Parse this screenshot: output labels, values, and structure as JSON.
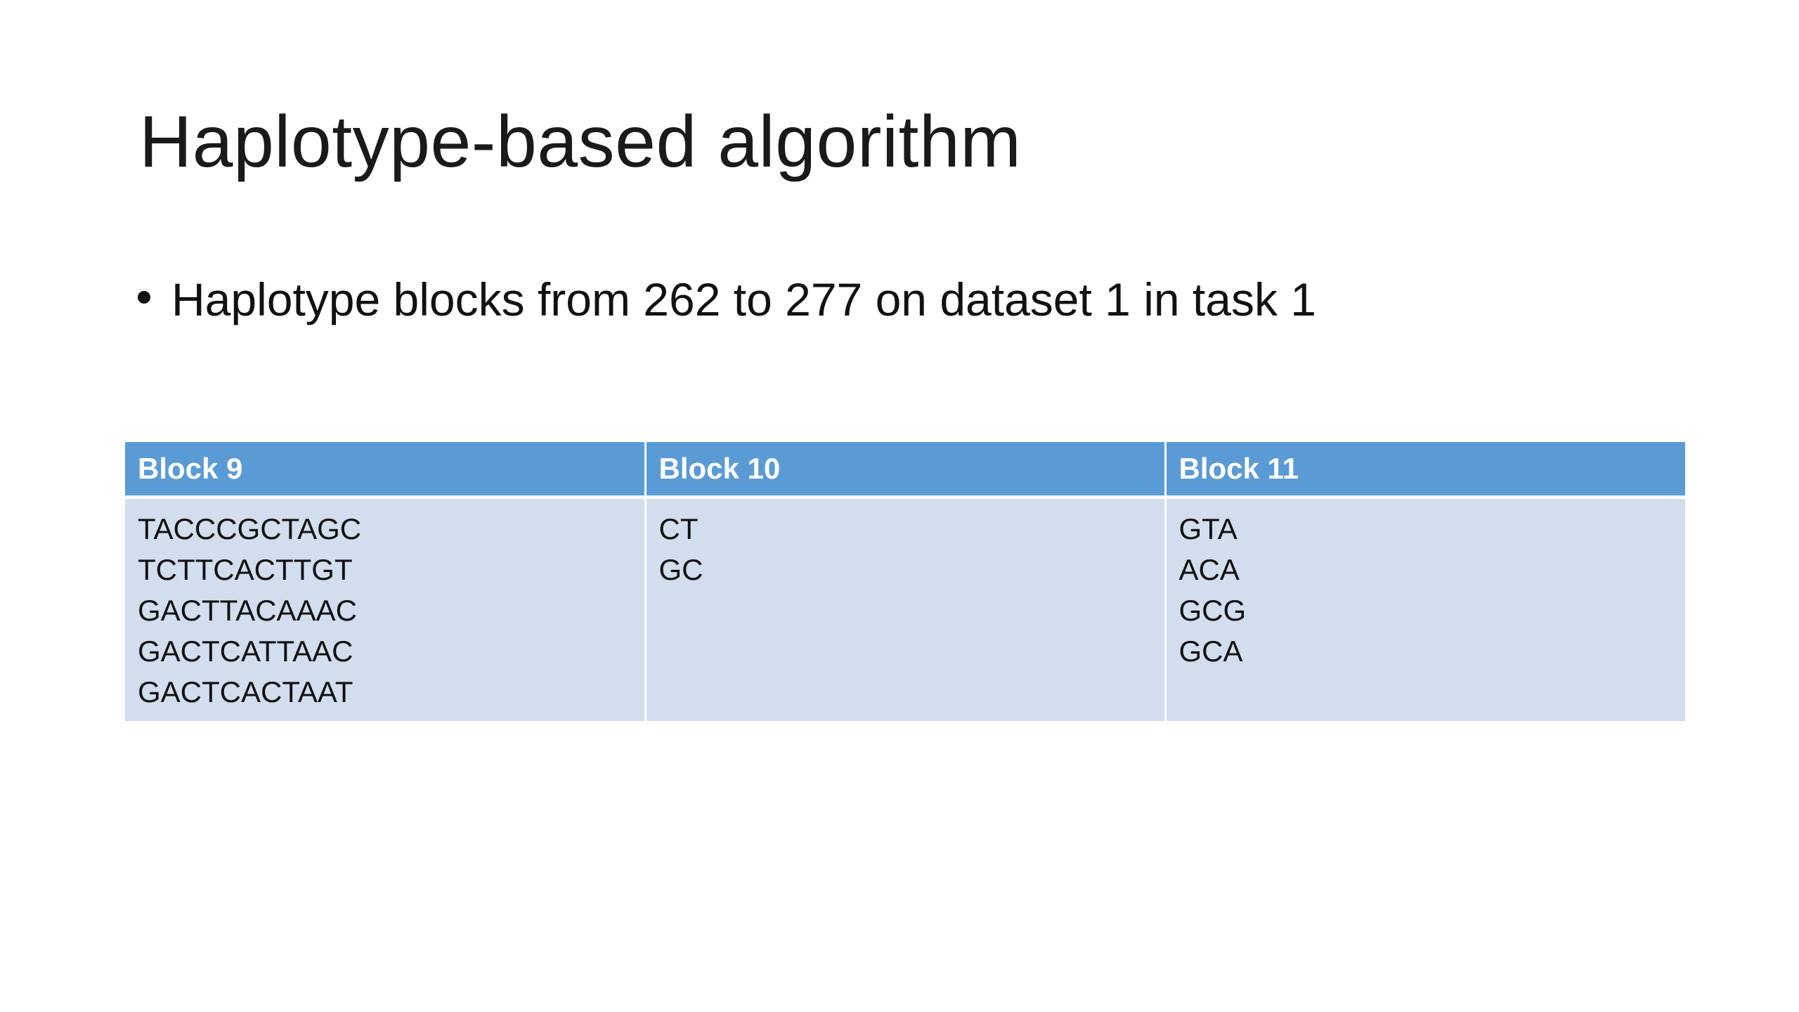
{
  "slide": {
    "title": "Haplotype-based algorithm",
    "bullet": "Haplotype blocks from 262 to 277 on dataset 1 in task 1"
  },
  "table": {
    "headers": [
      "Block 9",
      "Block 10",
      "Block 11"
    ],
    "columns": [
      [
        "TACCCGCTAGC",
        "TCTTCACTTGT",
        "GACTTACAAAC",
        "GACTCATTAAC",
        "GACTCACTAAT"
      ],
      [
        "CT",
        "GC"
      ],
      [
        "GTA",
        "ACA",
        "GCG",
        "GCA"
      ]
    ],
    "header_color": "#5b9bd5",
    "body_color": "#d2ddee"
  }
}
